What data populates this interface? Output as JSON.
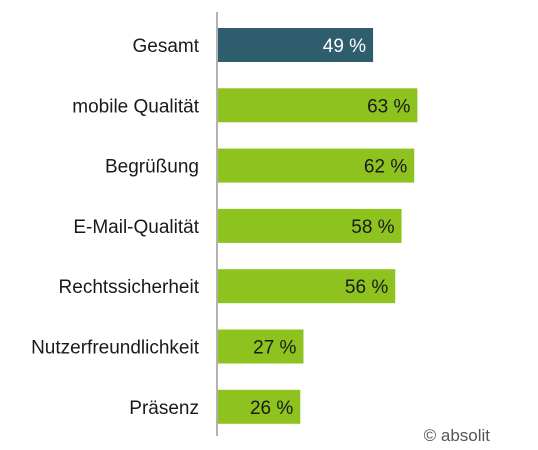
{
  "chart_data": {
    "type": "bar",
    "orientation": "horizontal",
    "categories": [
      "Gesamt",
      "mobile Qualität",
      "Begrüßung",
      "E-Mail-Qualität",
      "Rechtssicherheit",
      "Nutzerfreundlichkeit",
      "Präsenz"
    ],
    "values": [
      49,
      63,
      62,
      58,
      56,
      27,
      26
    ],
    "value_labels": [
      "49 %",
      "63 %",
      "62 %",
      "58 %",
      "56 %",
      "27 %",
      "26 %"
    ],
    "unit": "%",
    "xlim": [
      0,
      100
    ],
    "grid": false,
    "title": "",
    "xlabel": "",
    "ylabel": "",
    "colors": {
      "highlight": "#2e5d6e",
      "default": "#8dc21f",
      "highlight_label": "#ffffff",
      "default_label": "#1a1a1a",
      "axis": "#999999"
    }
  },
  "footer": {
    "copyright": "© absolit"
  }
}
